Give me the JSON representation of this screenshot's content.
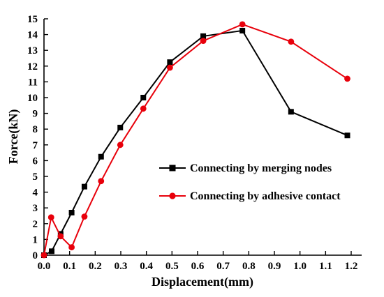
{
  "chart_data": {
    "type": "line",
    "title": "",
    "xlabel": "Displacement(mm)",
    "ylabel": "Force(kN)",
    "xlim": [
      0.0,
      1.2
    ],
    "ylim": [
      0,
      15
    ],
    "x_ticks": [
      "0.0",
      "0.1",
      "0.2",
      "0.3",
      "0.4",
      "0.5",
      "0.6",
      "0.7",
      "0.8",
      "0.9",
      "1.0",
      "1.1",
      "1.2"
    ],
    "y_ticks": [
      "0",
      "1",
      "2",
      "3",
      "4",
      "5",
      "6",
      "7",
      "8",
      "9",
      "10",
      "11",
      "12",
      "13",
      "14",
      "15"
    ],
    "grid": false,
    "legend_position": "right",
    "series": [
      {
        "name": "Connecting by merging nodes",
        "color": "#000000",
        "marker": "square",
        "x": [
          0.0,
          0.03,
          0.065,
          0.108,
          0.158,
          0.223,
          0.298,
          0.388,
          0.492,
          0.622,
          0.775,
          0.965,
          1.185
        ],
        "y": [
          0.0,
          0.25,
          1.35,
          2.7,
          4.35,
          6.25,
          8.1,
          10.0,
          12.25,
          13.9,
          14.25,
          9.1,
          7.6
        ]
      },
      {
        "name": "Connecting by adhesive contact",
        "color": "#e8000b",
        "marker": "circle",
        "x": [
          0.0,
          0.028,
          0.065,
          0.108,
          0.158,
          0.223,
          0.298,
          0.388,
          0.492,
          0.622,
          0.775,
          0.965,
          1.185
        ],
        "y": [
          0.0,
          2.4,
          1.2,
          0.5,
          2.45,
          4.7,
          7.0,
          9.3,
          11.9,
          13.6,
          14.65,
          13.55,
          11.2
        ]
      }
    ]
  }
}
